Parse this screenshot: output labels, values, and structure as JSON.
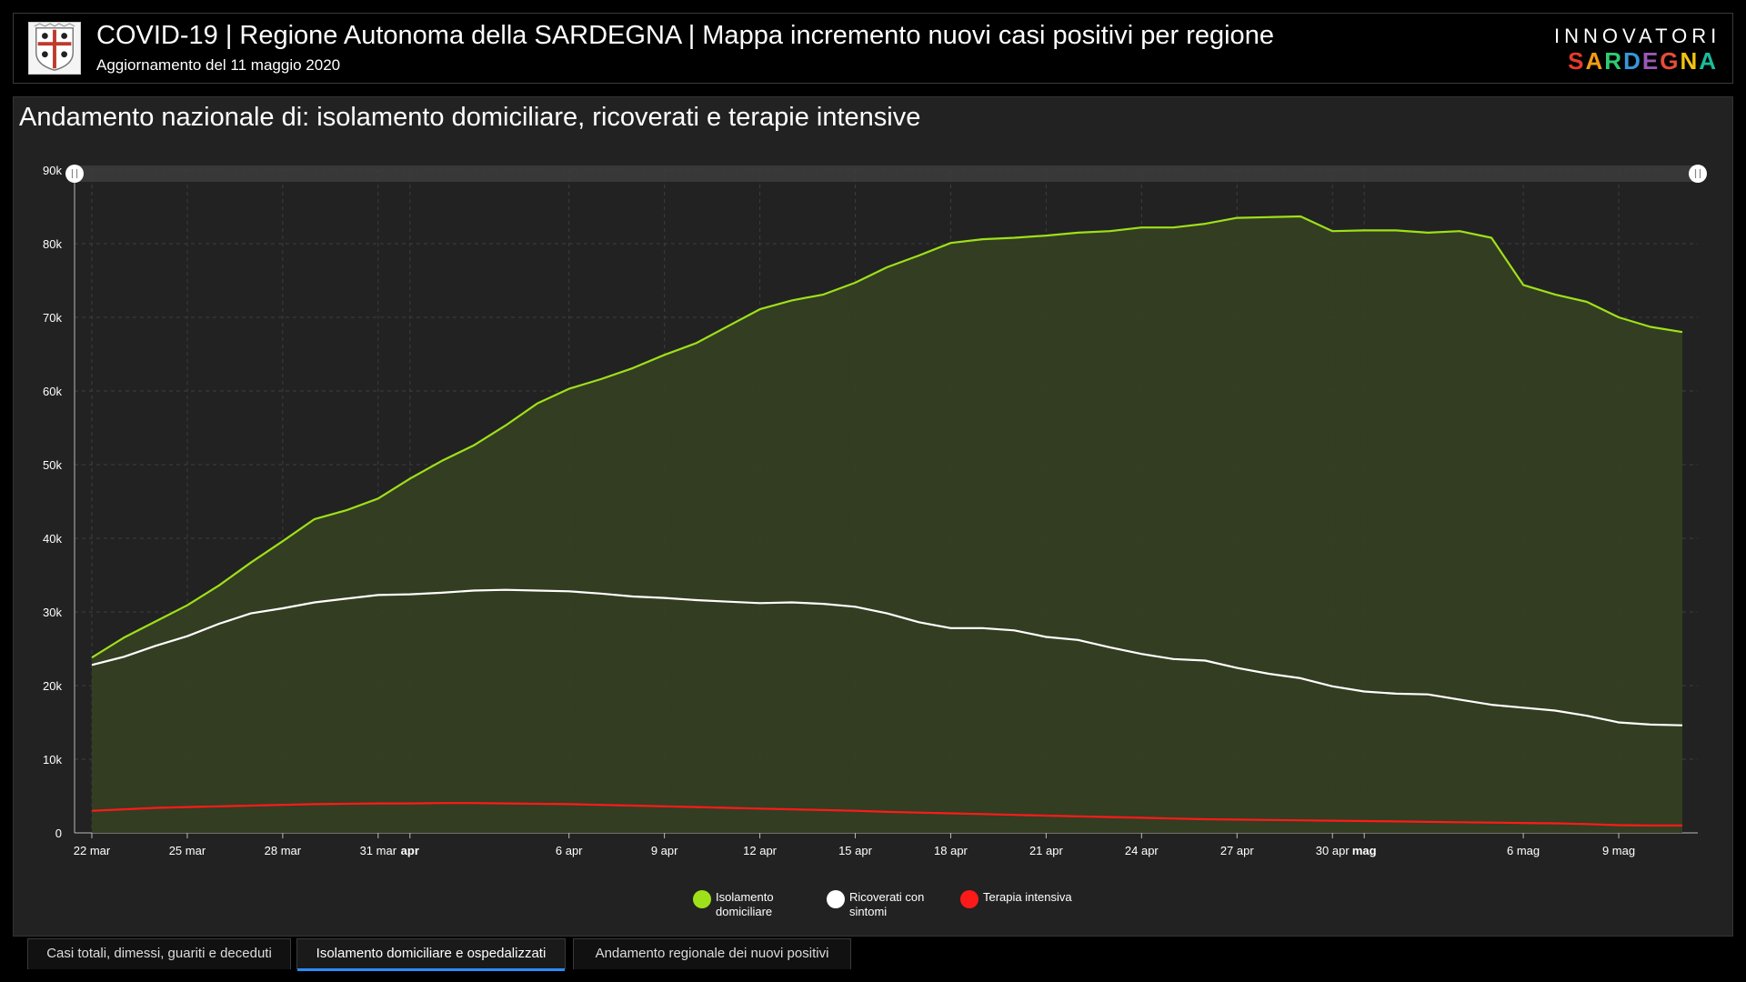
{
  "header": {
    "title": "COVID-19 | Regione Autonoma della SARDEGNA | Mappa incremento nuovi casi positivi per regione",
    "subtitle": "Aggiornamento del 11 maggio 2020",
    "logo_line1": "INNOVATORI",
    "logo_line2": "SARDEGNA",
    "logo_colors": [
      "#e63a2c",
      "#f39c12",
      "#2ecc71",
      "#3498db",
      "#9b59b6",
      "#e74c3c",
      "#f1c40f",
      "#1abc9c"
    ]
  },
  "panel": {
    "title": "Andamento nazionale di: isolamento domiciliare, ricoverati e terapie intensive"
  },
  "chart_data": {
    "type": "area",
    "title": "Andamento nazionale di: isolamento domiciliare, ricoverati e terapie intensive",
    "x_start": "2020-03-22",
    "x_end": "2020-05-11",
    "x_tick_labels": [
      "22 mar",
      "25 mar",
      "28 mar",
      "31 mar",
      "apr",
      "6 apr",
      "9 apr",
      "12 apr",
      "15 apr",
      "18 apr",
      "21 apr",
      "24 apr",
      "27 apr",
      "30 apr",
      "mag",
      "6 mag",
      "9 mag"
    ],
    "x_tick_bold": [
      "apr",
      "mag"
    ],
    "y_tick_labels": [
      "0",
      "10k",
      "20k",
      "30k",
      "40k",
      "50k",
      "60k",
      "70k",
      "80k",
      "90k"
    ],
    "ylim": [
      0,
      90000
    ],
    "grid": true,
    "legend_position": "bottom",
    "series": [
      {
        "name": "Isolamento domiciliare",
        "color": "#9ee01a",
        "fill": "#353f22",
        "values": [
          23800,
          26500,
          28700,
          30900,
          33600,
          36700,
          39600,
          42600,
          43800,
          45400,
          48100,
          50500,
          52600,
          55300,
          58300,
          60300,
          61600,
          63100,
          64900,
          66500,
          68800,
          71100,
          72300,
          73100,
          74700,
          76800,
          78400,
          80100,
          80600,
          80800,
          81100,
          81500,
          81700,
          82200,
          82200,
          82700,
          83500,
          83600,
          83700,
          81700,
          81800,
          81800,
          81500,
          81700,
          80800,
          74400,
          73100,
          72100,
          70000,
          68700,
          68000
        ]
      },
      {
        "name": "Ricoverati con sintomi",
        "color": "#ffffff",
        "values": [
          22800,
          23900,
          25400,
          26700,
          28400,
          29800,
          30500,
          31300,
          31800,
          32300,
          32400,
          32600,
          32900,
          33000,
          32900,
          32800,
          32500,
          32100,
          31900,
          31600,
          31400,
          31200,
          31300,
          31100,
          30700,
          29800,
          28600,
          27800,
          27800,
          27500,
          26600,
          26200,
          25200,
          24300,
          23600,
          23400,
          22400,
          21600,
          21000,
          19900,
          19200,
          18900,
          18800,
          18100,
          17400,
          17000,
          16600,
          15900,
          15000,
          14700,
          14600
        ]
      },
      {
        "name": "Terapia intensiva",
        "color": "#ff1a1a",
        "values": [
          3000,
          3200,
          3400,
          3500,
          3600,
          3700,
          3800,
          3900,
          3950,
          4000,
          4000,
          4050,
          4050,
          4000,
          3950,
          3900,
          3800,
          3700,
          3600,
          3500,
          3400,
          3300,
          3200,
          3100,
          3000,
          2850,
          2750,
          2650,
          2550,
          2450,
          2350,
          2250,
          2150,
          2050,
          1950,
          1850,
          1800,
          1750,
          1700,
          1650,
          1600,
          1550,
          1500,
          1450,
          1400,
          1350,
          1300,
          1200,
          1050,
          1000,
          1000
        ]
      }
    ]
  },
  "legend": [
    {
      "label": "Isolamento domiciliare",
      "color": "#9ee01a"
    },
    {
      "label": "Ricoverati con sintomi",
      "color": "#ffffff"
    },
    {
      "label": "Terapia intensiva",
      "color": "#ff1a1a"
    }
  ],
  "tabs": [
    {
      "label": "Casi totali, dimessi, guariti e deceduti",
      "active": false
    },
    {
      "label": "Isolamento domiciliare e ospedalizzati",
      "active": true
    },
    {
      "label": "Andamento regionale dei nuovi positivi",
      "active": false
    }
  ]
}
